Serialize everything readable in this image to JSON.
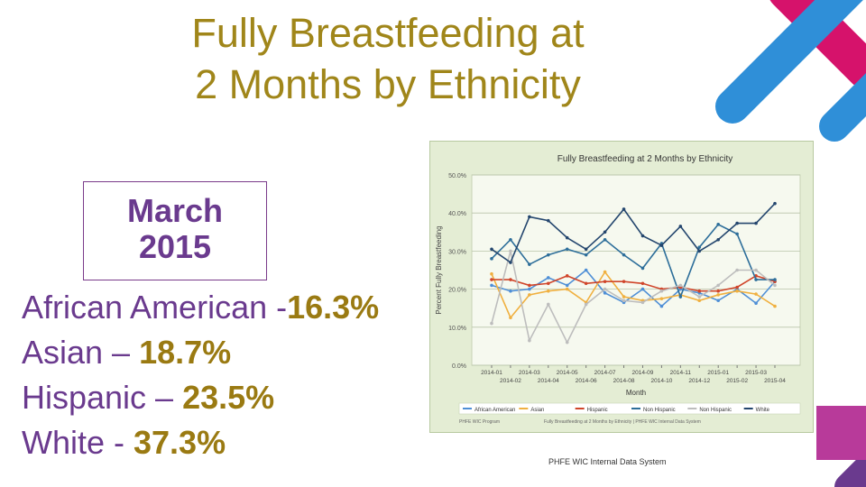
{
  "slide": {
    "title_line1": "Fully Breastfeeding at",
    "title_line2": "2 Months by Ethnicity",
    "date_line1": "March",
    "date_line2": "2015",
    "stats": [
      {
        "label": "African American -",
        "value": "16.3%"
      },
      {
        "label": "Asian – ",
        "value": "18.7%"
      },
      {
        "label": "Hispanic – ",
        "value": "23.5%"
      },
      {
        "label": "White - ",
        "value": "37.3%"
      }
    ],
    "footer": "PHFE WIC Internal Data System",
    "colors": {
      "title": "#a0861a",
      "box_text": "#6a3a8e",
      "accent_pink": "#d6126b",
      "accent_blue": "#2f8fd8",
      "accent_purple": "#6a3a8e"
    }
  },
  "chart_data": {
    "type": "line",
    "title": "Fully Breastfeeding at 2 Months by Ethnicity",
    "xlabel": "Month",
    "ylabel": "Percent Fully Breastfeeding",
    "ylim": [
      0,
      50
    ],
    "yticks": [
      "0.0%",
      "10.0%",
      "20.0%",
      "30.0%",
      "40.0%",
      "50.0%"
    ],
    "x_labels_top": [
      "2014-01",
      "2014-03",
      "2014-05",
      "2014-07",
      "2014-09",
      "2014-11",
      "2015-01",
      "2015-03"
    ],
    "x_labels_bottom": [
      "2014-02",
      "2014-04",
      "2014-06",
      "2014-08",
      "2014-10",
      "2014-12",
      "2015-02",
      "2015-04"
    ],
    "categories": [
      "2014-01",
      "2014-02",
      "2014-03",
      "2014-04",
      "2014-05",
      "2014-06",
      "2014-07",
      "2014-08",
      "2014-09",
      "2014-10",
      "2014-11",
      "2014-12",
      "2015-01",
      "2015-02",
      "2015-03",
      "2015-04"
    ],
    "series": [
      {
        "name": "African American",
        "color": "#4f8fd6",
        "values": [
          21,
          19.5,
          20,
          23,
          21,
          25,
          19,
          16.5,
          20,
          15.5,
          20,
          19,
          17,
          20,
          16.3,
          22
        ]
      },
      {
        "name": "Asian",
        "color": "#f0b040",
        "values": [
          24,
          12.5,
          18.5,
          19.5,
          20,
          16.5,
          24.5,
          18,
          17,
          17.5,
          18.5,
          17,
          18.5,
          19.5,
          18.7,
          15.5
        ]
      },
      {
        "name": "Hispanic",
        "color": "#d0452a",
        "values": [
          22.5,
          22.5,
          21,
          21.5,
          23.5,
          21.5,
          22,
          22,
          21.5,
          20,
          20.5,
          19.5,
          19.5,
          20.5,
          23.5,
          22
        ]
      },
      {
        "name": "Non Hispanic",
        "color": "#2d6e9a",
        "values": [
          28,
          33,
          26.5,
          29,
          30.5,
          29,
          33,
          29,
          25.5,
          32,
          18,
          31,
          37,
          34.5,
          22.5,
          22.5
        ]
      },
      {
        "name": "Non Hispanic",
        "color": "#bdbdbd",
        "values": [
          11,
          30,
          6.5,
          16,
          6,
          16,
          20,
          17,
          16.5,
          19.5,
          21,
          18,
          21,
          25,
          25,
          21
        ]
      },
      {
        "name": "White",
        "color": "#24466e",
        "values": [
          30.5,
          27,
          39,
          38,
          33.5,
          30.5,
          35,
          41,
          34,
          31.5,
          36.5,
          30,
          33,
          37.3,
          37.3,
          42.5
        ]
      }
    ],
    "legend": [
      "African American",
      "Asian",
      "Hispanic",
      "Non Hispanic",
      "Non Hispanic",
      "White"
    ],
    "note_left": "PHFE WIC Program",
    "note_right": "Fully Breastfeeding at 2 Months by Ethnicity | PHFE WIC Internal Data System"
  }
}
